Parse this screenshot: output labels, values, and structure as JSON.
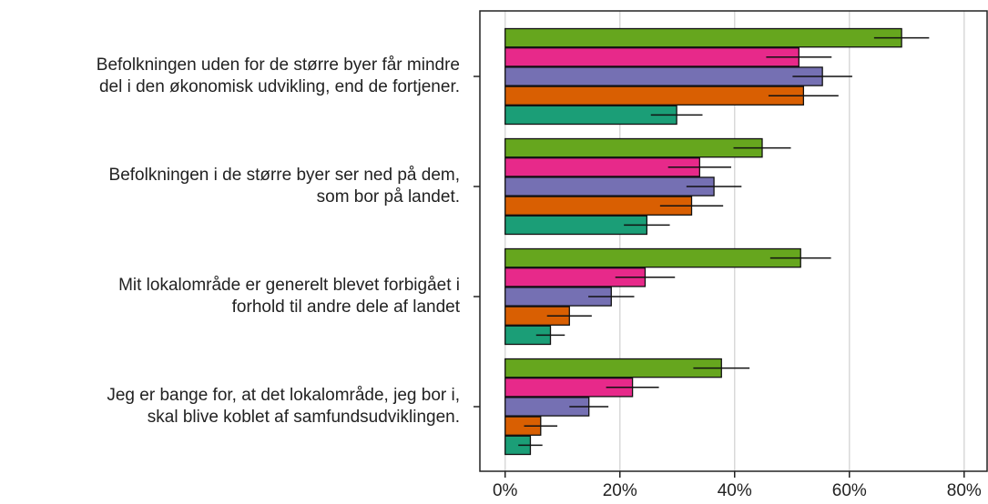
{
  "chart_data": {
    "type": "bar",
    "orientation": "horizontal",
    "categories": [
      [
        "Befolkningen uden for de større byer får mindre",
        "del i den økonomisk udvikling, end de fortjener."
      ],
      [
        "Befolkningen i de større byer ser ned på dem,",
        "som bor på landet."
      ],
      [
        "Mit lokalområde er generelt blevet forbigået i",
        "forhold til andre dele af landet"
      ],
      [
        "Jeg er bange for, at det lokalområde, jeg bor i,",
        "skal blive koblet af samfundsudviklingen."
      ]
    ],
    "series": [
      {
        "color": "#66a61e",
        "values": [
          69.1,
          44.8,
          51.5,
          37.7
        ],
        "errors": [
          4.8,
          5.0,
          5.3,
          4.9
        ]
      },
      {
        "color": "#e7298a",
        "values": [
          51.2,
          33.9,
          24.4,
          22.2
        ],
        "errors": [
          5.7,
          5.5,
          5.2,
          4.6
        ]
      },
      {
        "color": "#7570b3",
        "values": [
          55.3,
          36.4,
          18.5,
          14.6
        ],
        "errors": [
          5.2,
          4.8,
          4.0,
          3.4
        ]
      },
      {
        "color": "#d95f02",
        "values": [
          52.0,
          32.5,
          11.2,
          6.2
        ],
        "errors": [
          6.1,
          5.5,
          3.9,
          2.9
        ]
      },
      {
        "color": "#1b9e77",
        "values": [
          29.9,
          24.7,
          7.9,
          4.4
        ],
        "errors": [
          4.5,
          4.0,
          2.5,
          2.1
        ]
      }
    ],
    "xlim": [
      -4.4,
      84
    ],
    "xticks": [
      {
        "value": 0,
        "label": "0%"
      },
      {
        "value": 20,
        "label": "20%"
      },
      {
        "value": 40,
        "label": "40%"
      },
      {
        "value": 60,
        "label": "60%"
      },
      {
        "value": 80,
        "label": "80%"
      }
    ],
    "grid": true
  }
}
